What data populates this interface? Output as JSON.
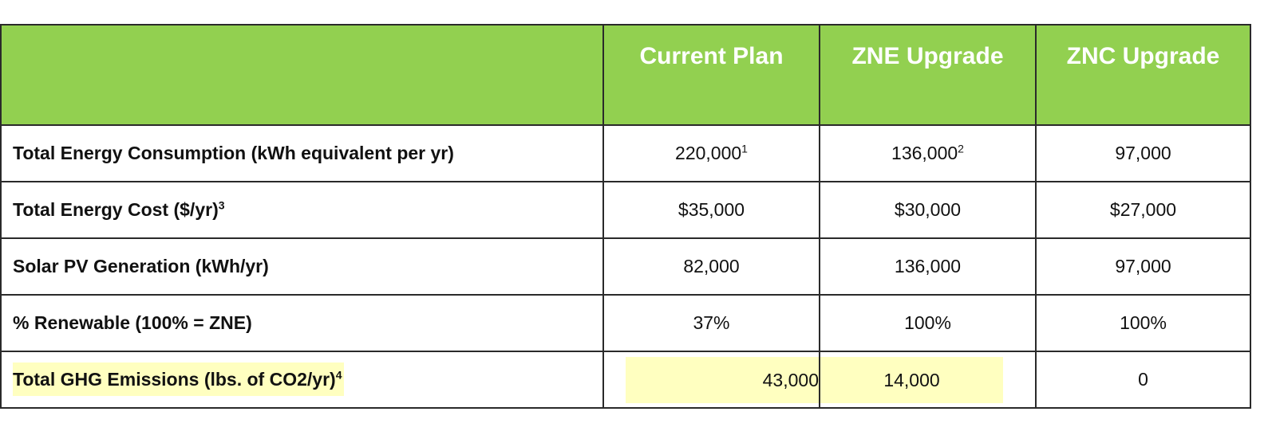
{
  "table": {
    "columns": [
      "",
      "Current Plan",
      "ZNE Upgrade",
      "ZNC Upgrade"
    ],
    "rows": [
      {
        "label": "Total Energy Consumption (kWh equivalent per yr)",
        "label_sup": "",
        "cells": [
          {
            "value": "220,000",
            "sup": "1"
          },
          {
            "value": "136,000",
            "sup": "2"
          },
          {
            "value": "97,000",
            "sup": ""
          }
        ]
      },
      {
        "label": "Total Energy Cost ($/yr)",
        "label_sup": "3",
        "cells": [
          {
            "value": "$35,000",
            "sup": ""
          },
          {
            "value": "$30,000",
            "sup": ""
          },
          {
            "value": "$27,000",
            "sup": ""
          }
        ]
      },
      {
        "label": "Solar PV Generation (kWh/yr)",
        "label_sup": "",
        "cells": [
          {
            "value": "82,000",
            "sup": ""
          },
          {
            "value": "136,000",
            "sup": ""
          },
          {
            "value": "97,000",
            "sup": ""
          }
        ]
      },
      {
        "label": "% Renewable (100% = ZNE)",
        "label_sup": "",
        "cells": [
          {
            "value": "37%",
            "sup": ""
          },
          {
            "value": "100%",
            "sup": ""
          },
          {
            "value": "100%",
            "sup": ""
          }
        ]
      },
      {
        "label": "Total GHG Emissions (lbs. of CO2/yr)",
        "label_sup": "4",
        "cells": [
          {
            "value": "43,000",
            "sup": ""
          },
          {
            "value": "14,000",
            "sup": ""
          },
          {
            "value": "0",
            "sup": ""
          }
        ]
      }
    ]
  },
  "colors": {
    "header_bg": "#92d050",
    "header_text": "#ffffff",
    "highlight": "#ffffc0",
    "border": "#2a2a2a"
  }
}
